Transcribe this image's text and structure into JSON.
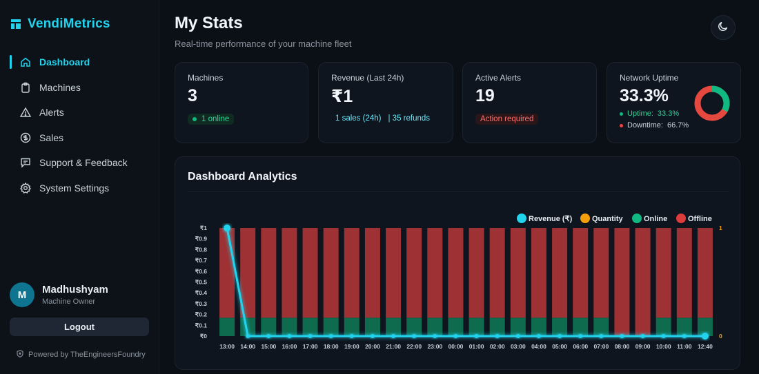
{
  "brand": {
    "name": "VendiMetrics",
    "icon": "grid-logo-icon",
    "color": "#22d3ee"
  },
  "sidebar": {
    "items": [
      {
        "label": "Dashboard",
        "icon": "home-icon",
        "active": true
      },
      {
        "label": "Machines",
        "icon": "clipboard-icon",
        "active": false
      },
      {
        "label": "Alerts",
        "icon": "warning-triangle-icon",
        "active": false
      },
      {
        "label": "Sales",
        "icon": "dollar-circle-icon",
        "active": false
      },
      {
        "label": "Support & Feedback",
        "icon": "chat-icon",
        "active": false
      },
      {
        "label": "System Settings",
        "icon": "gear-icon",
        "active": false
      }
    ]
  },
  "user": {
    "initial": "M",
    "name": "Madhushyam",
    "role": "Machine Owner"
  },
  "logout_label": "Logout",
  "powered_by": "Powered by TheEngineersFoundry",
  "header": {
    "title": "My Stats",
    "subtitle": "Real-time performance of your machine fleet",
    "theme_icon": "moon-icon"
  },
  "cards": {
    "machines": {
      "label": "Machines",
      "value": "3",
      "status": "1 online"
    },
    "revenue": {
      "label": "Revenue (Last 24h)",
      "value": "₹1",
      "sales": "1 sales (24h)",
      "refunds": "| 35 refunds"
    },
    "alerts": {
      "label": "Active Alerts",
      "value": "19",
      "status": "Action required"
    },
    "uptime": {
      "label": "Network Uptime",
      "value": "33.3%",
      "uptime_label": "Uptime:",
      "uptime_value": "33.3%",
      "downtime_label": "Downtime:",
      "downtime_value": "66.7%",
      "uptime_pct": 33.3
    }
  },
  "analytics": {
    "title": "Dashboard Analytics"
  },
  "colors": {
    "revenue": "#22d3ee",
    "quantity": "#f59e0b",
    "online": "#10b981",
    "offline": "#dc3c3c"
  },
  "chart_data": {
    "type": "bar",
    "legend": [
      "Revenue (₹)",
      "Quantity",
      "Online",
      "Offline"
    ],
    "legend_position": "top-right",
    "categories": [
      "13:00",
      "14:00",
      "15:00",
      "16:00",
      "17:00",
      "18:00",
      "19:00",
      "20:00",
      "21:00",
      "22:00",
      "23:00",
      "00:00",
      "01:00",
      "02:00",
      "03:00",
      "04:00",
      "05:00",
      "06:00",
      "07:00",
      "08:00",
      "09:00",
      "10:00",
      "11:00",
      "12:40"
    ],
    "y_ticks": [
      "₹0",
      "₹0.1",
      "₹0.2",
      "₹0.3",
      "₹0.4",
      "₹0.5",
      "₹0.6",
      "₹0.7",
      "₹0.8",
      "₹0.9",
      "₹1"
    ],
    "ylim": [
      0,
      1
    ],
    "y2_ticks": [
      "0",
      "1"
    ],
    "y2lim": [
      0,
      1
    ],
    "series": [
      {
        "name": "Revenue (₹)",
        "type": "line",
        "values": [
          1,
          0,
          0,
          0,
          0,
          0,
          0,
          0,
          0,
          0,
          0,
          0,
          0,
          0,
          0,
          0,
          0,
          0,
          0,
          0,
          0,
          0,
          0,
          0
        ]
      },
      {
        "name": "Quantity",
        "type": "line",
        "values": [
          1,
          0,
          0,
          0,
          0,
          0,
          0,
          0,
          0,
          0,
          0,
          0,
          0,
          0,
          0,
          0,
          0,
          0,
          0,
          0,
          0,
          0,
          0,
          0
        ]
      },
      {
        "name": "Online",
        "type": "bar",
        "values": [
          0.17,
          0.17,
          0.17,
          0.17,
          0.17,
          0.17,
          0.17,
          0.17,
          0.17,
          0.17,
          0.17,
          0.17,
          0.17,
          0.17,
          0.17,
          0.17,
          0.17,
          0.17,
          0.17,
          0,
          0,
          0.17,
          0.17,
          0.17
        ]
      },
      {
        "name": "Offline",
        "type": "bar",
        "values": [
          0.83,
          0.83,
          0.83,
          0.83,
          0.83,
          0.83,
          0.83,
          0.83,
          0.83,
          0.83,
          0.83,
          0.83,
          0.83,
          0.83,
          0.83,
          0.83,
          0.83,
          0.83,
          0.83,
          1,
          1,
          0.83,
          0.83,
          0.83
        ]
      }
    ]
  }
}
